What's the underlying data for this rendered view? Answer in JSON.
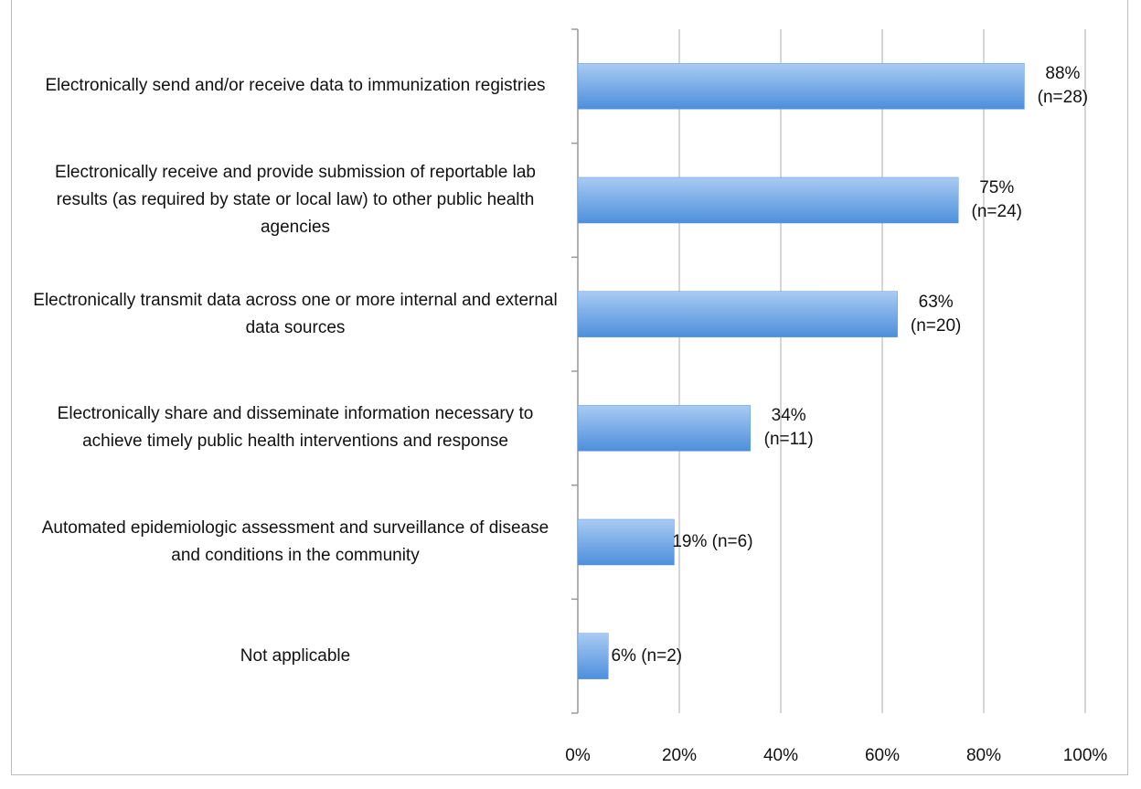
{
  "chart_data": {
    "type": "barh",
    "categories": [
      "Electronically send and/or receive  data to immunization registries",
      "Electronically receive and provide  submission of reportable lab results (as required by state or local law) to other public health agencies",
      "Electronically transmit data across one or more internal and external data sources",
      "Electronically share and disseminate information necessary to achieve timely public health interventions and response",
      "Automated epidemiologic assessment and surveillance of disease and conditions in the community",
      "Not applicable"
    ],
    "values": [
      88,
      75,
      63,
      34,
      19,
      6
    ],
    "value_labels": [
      "88% (n=28)",
      "75% (n=24)",
      "63% (n=20)",
      "34% (n=11)",
      "19% (n=6)",
      "6% (n=2)"
    ],
    "color": "#5b9be0",
    "xlim": [
      0,
      100
    ],
    "xticks": [
      {
        "value": 0,
        "label": "0%"
      },
      {
        "value": 20,
        "label": "20%"
      },
      {
        "value": 40,
        "label": "40%"
      },
      {
        "value": 60,
        "label": "60%"
      },
      {
        "value": 80,
        "label": "80%"
      },
      {
        "value": 100,
        "label": "100%"
      }
    ],
    "grid": true
  }
}
